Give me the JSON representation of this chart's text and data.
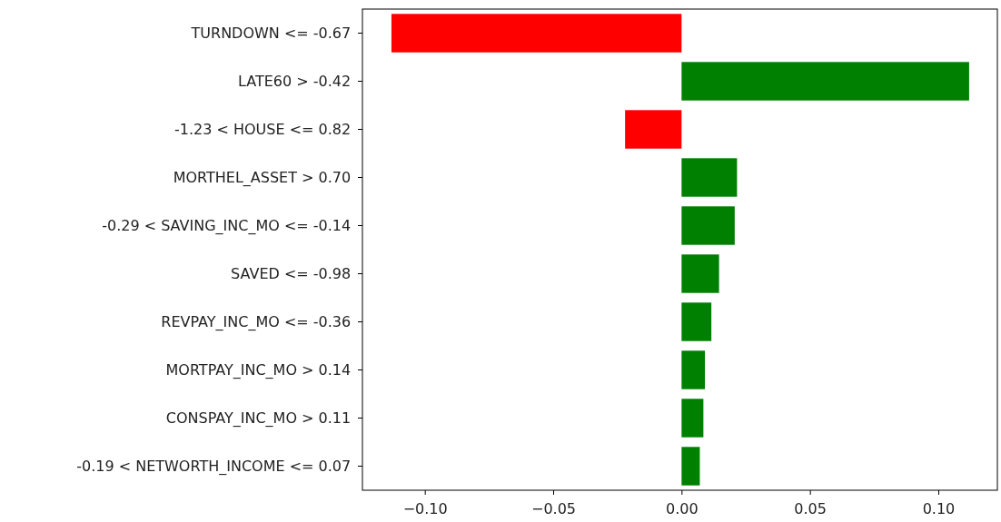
{
  "chart_data": {
    "type": "bar",
    "orientation": "horizontal",
    "categories": [
      "TURNDOWN <= -0.67",
      "LATE60 > -0.42",
      "-1.23 < HOUSE  <= 0.82",
      "MORTHEL_ASSET > 0.70",
      "-0.29 < SAVING_INC_MO <= -0.14",
      "SAVED <= -0.98",
      "REVPAY_INC_MO <= -0.36",
      "MORTPAY_INC_MO > 0.14",
      "CONSPAY_INC_MO > 0.11",
      "-0.19 < NETWORTH_INCOME <= 0.07"
    ],
    "values": [
      -0.113,
      0.112,
      -0.022,
      0.0216,
      0.0207,
      0.0146,
      0.0116,
      0.0091,
      0.0085,
      0.0071
    ],
    "colors": [
      "#ff0000",
      "#008000",
      "#ff0000",
      "#008000",
      "#008000",
      "#008000",
      "#008000",
      "#008000",
      "#008000",
      "#008000"
    ],
    "xlim": [
      -0.1243,
      0.123
    ],
    "xticks": [
      {
        "value": -0.1,
        "label": "−0.10"
      },
      {
        "value": -0.05,
        "label": "−0.05"
      },
      {
        "value": 0,
        "label": "0.00"
      },
      {
        "value": 0.05,
        "label": "0.05"
      },
      {
        "value": 0.1,
        "label": "0.10"
      }
    ]
  }
}
